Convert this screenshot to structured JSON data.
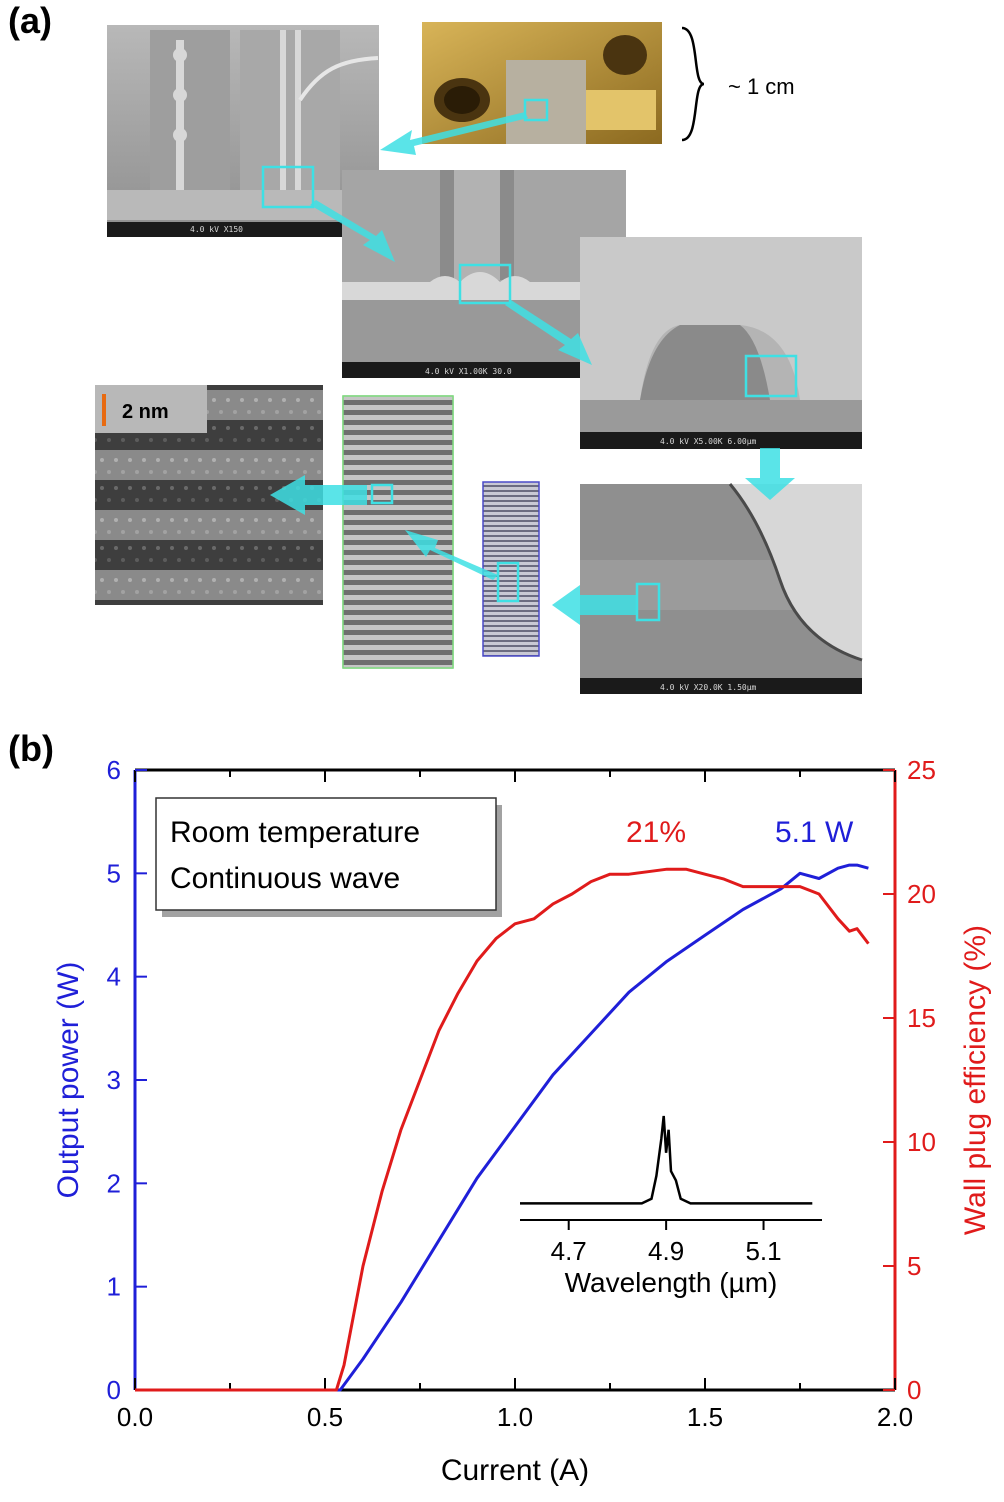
{
  "panel_a": {
    "label": "(a)",
    "size_annotation": "~ 1 cm",
    "scale_bar_text": "2 nm",
    "sem_captions": [
      "4.0 kV X150",
      "4.0 kV X1.00K 30.0",
      "4.0 kV X5.00K 6.00µm",
      "4.0 kV X20.0K 1.50µm"
    ],
    "colors": {
      "highlight": "#3ee0e4",
      "scale_bar": "#e86a10"
    }
  },
  "panel_b": {
    "label": "(b)"
  },
  "chart_data": {
    "type": "line",
    "xlabel": "Current (A)",
    "ylabel_left": "Output power (W)",
    "ylabel_right": "Wall plug efficiency (%)",
    "xlim": [
      0.0,
      2.0
    ],
    "ylim_left": [
      0,
      6
    ],
    "ylim_right": [
      0,
      25
    ],
    "x_ticks": [
      "0.0",
      "0.5",
      "1.0",
      "1.5",
      "2.0"
    ],
    "y_ticks_left": [
      "0",
      "1",
      "2",
      "3",
      "4",
      "5",
      "6"
    ],
    "y_ticks_right": [
      "0",
      "5",
      "10",
      "15",
      "20",
      "25"
    ],
    "legend_lines": [
      "Room temperature",
      "Continuous wave"
    ],
    "legend_placement": "top-left",
    "annotations": {
      "power_peak": "5.1 W",
      "efficiency_peak": "21%"
    },
    "series": [
      {
        "axis": "left",
        "color": "#1f1fd8",
        "points": [
          [
            0,
            0
          ],
          [
            0.54,
            0
          ],
          [
            0.6,
            0.3
          ],
          [
            0.7,
            0.85
          ],
          [
            0.8,
            1.45
          ],
          [
            0.9,
            2.05
          ],
          [
            1.0,
            2.55
          ],
          [
            1.1,
            3.05
          ],
          [
            1.2,
            3.45
          ],
          [
            1.3,
            3.85
          ],
          [
            1.4,
            4.15
          ],
          [
            1.5,
            4.4
          ],
          [
            1.6,
            4.65
          ],
          [
            1.7,
            4.85
          ],
          [
            1.75,
            5.0
          ],
          [
            1.8,
            4.95
          ],
          [
            1.85,
            5.05
          ],
          [
            1.88,
            5.08
          ],
          [
            1.9,
            5.08
          ],
          [
            1.93,
            5.05
          ]
        ]
      },
      {
        "axis": "right",
        "color": "#e01b1b",
        "points": [
          [
            0,
            0
          ],
          [
            0.53,
            0
          ],
          [
            0.55,
            1.0
          ],
          [
            0.6,
            5.0
          ],
          [
            0.65,
            8.0
          ],
          [
            0.7,
            10.5
          ],
          [
            0.75,
            12.5
          ],
          [
            0.8,
            14.5
          ],
          [
            0.85,
            16.0
          ],
          [
            0.9,
            17.3
          ],
          [
            0.95,
            18.2
          ],
          [
            1.0,
            18.8
          ],
          [
            1.05,
            19.0
          ],
          [
            1.1,
            19.6
          ],
          [
            1.15,
            20.0
          ],
          [
            1.2,
            20.5
          ],
          [
            1.25,
            20.8
          ],
          [
            1.3,
            20.8
          ],
          [
            1.35,
            20.9
          ],
          [
            1.4,
            21.0
          ],
          [
            1.45,
            21.0
          ],
          [
            1.5,
            20.8
          ],
          [
            1.55,
            20.6
          ],
          [
            1.6,
            20.3
          ],
          [
            1.65,
            20.3
          ],
          [
            1.7,
            20.3
          ],
          [
            1.75,
            20.3
          ],
          [
            1.8,
            20.0
          ],
          [
            1.85,
            19.0
          ],
          [
            1.88,
            18.5
          ],
          [
            1.9,
            18.6
          ],
          [
            1.93,
            18.0
          ]
        ]
      }
    ],
    "inset": {
      "type": "line",
      "xlabel": "Wavelength (µm)",
      "x_ticks": [
        "4.7",
        "4.9",
        "5.1"
      ],
      "xlim": [
        4.6,
        5.22
      ],
      "color": "#000000",
      "points": [
        [
          4.6,
          0.05
        ],
        [
          4.85,
          0.05
        ],
        [
          4.87,
          0.1
        ],
        [
          4.88,
          0.35
        ],
        [
          4.89,
          0.75
        ],
        [
          4.895,
          1.0
        ],
        [
          4.9,
          0.6
        ],
        [
          4.905,
          0.85
        ],
        [
          4.91,
          0.4
        ],
        [
          4.92,
          0.3
        ],
        [
          4.93,
          0.1
        ],
        [
          4.95,
          0.05
        ],
        [
          5.2,
          0.05
        ]
      ]
    }
  }
}
